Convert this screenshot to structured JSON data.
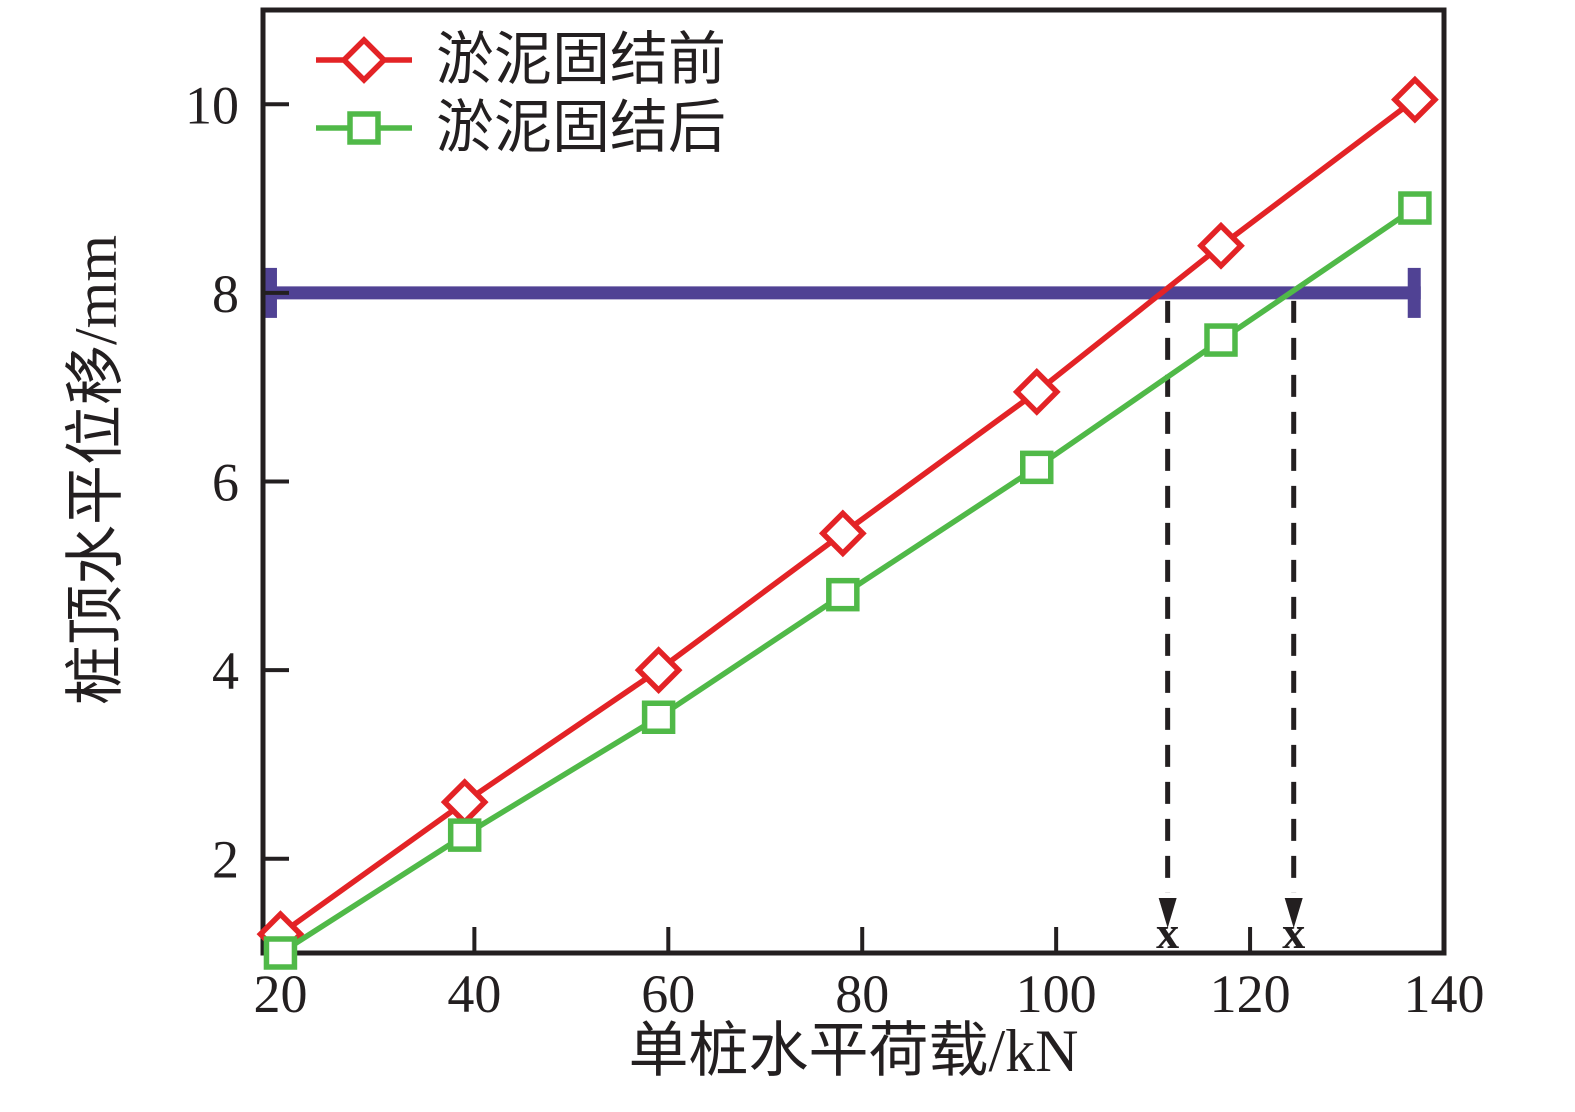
{
  "figure": {
    "background": "#ffffff",
    "text_color": "#231f20",
    "axis_color": "#231f20"
  },
  "chart_data": {
    "type": "line",
    "title": "",
    "xlabel": "单桩水平荷载/kN",
    "ylabel": "桩顶水平位移/mm",
    "xlim": [
      18.2,
      140
    ],
    "ylim": [
      1,
      11
    ],
    "x_ticks": [
      20,
      40,
      60,
      80,
      100,
      120,
      140
    ],
    "y_ticks": [
      2,
      4,
      6,
      8,
      10
    ],
    "grid": false,
    "legend_position": "top-left-inside",
    "series": [
      {
        "name": "淤泥固结前",
        "marker": "diamond",
        "color": "#e32326",
        "x": [
          20,
          39,
          59,
          78,
          98,
          117,
          137
        ],
        "y": [
          1.2,
          2.6,
          4.0,
          5.45,
          6.95,
          8.5,
          10.05
        ]
      },
      {
        "name": "淤泥固结后",
        "marker": "square",
        "color": "#50b948",
        "x": [
          20,
          39,
          59,
          78,
          98,
          117,
          137
        ],
        "y": [
          1.0,
          2.25,
          3.5,
          4.8,
          6.15,
          7.5,
          8.9
        ]
      }
    ],
    "reference_line": {
      "y": 8,
      "color": "#504294",
      "x_start": 18.3,
      "x_end": 137.6,
      "end_caps": true
    },
    "crossing_annotations": [
      {
        "x": 111.5,
        "label": "x"
      },
      {
        "x": 124.5,
        "label": "x"
      }
    ]
  }
}
